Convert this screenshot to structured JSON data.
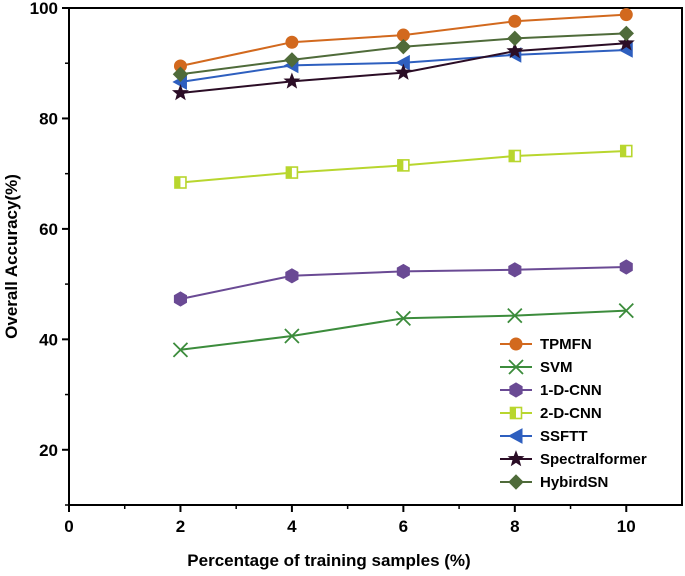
{
  "chart_data": {
    "type": "line",
    "title": "",
    "xlabel": "Percentage of training samples (%)",
    "ylabel": "Overall Accuracy(%)",
    "xlim": [
      0,
      11
    ],
    "ylim": [
      10,
      100
    ],
    "xticks": [
      0,
      2,
      4,
      6,
      8,
      10
    ],
    "yticks": [
      20,
      40,
      60,
      80,
      100
    ],
    "x": [
      2,
      4,
      6,
      8,
      10
    ],
    "legend_position": "bottom-right",
    "grid": false,
    "series": [
      {
        "name": "TPMFN",
        "color": "#d2691e",
        "marker": "circle",
        "values": [
          89.5,
          93.8,
          95.1,
          97.6,
          98.8
        ]
      },
      {
        "name": "SVM",
        "color": "#3c8c3c",
        "marker": "cross",
        "values": [
          38.1,
          40.6,
          43.8,
          44.3,
          45.2
        ]
      },
      {
        "name": "1-D-CNN",
        "color": "#6a4a94",
        "marker": "hexagon",
        "values": [
          47.3,
          51.5,
          52.3,
          52.6,
          53.1
        ]
      },
      {
        "name": "2-D-CNN",
        "color": "#b8d62e",
        "marker": "half-square",
        "values": [
          68.4,
          70.2,
          71.5,
          73.2,
          74.1
        ]
      },
      {
        "name": "SSFTT",
        "color": "#2e5fbf",
        "marker": "left-triangle",
        "values": [
          86.6,
          89.6,
          90.1,
          91.5,
          92.4
        ]
      },
      {
        "name": "Spectralformer",
        "color": "#2b0d26",
        "marker": "star",
        "values": [
          84.6,
          86.7,
          88.3,
          92.2,
          93.6
        ]
      },
      {
        "name": "HybirdSN",
        "color": "#4f6b3a",
        "marker": "diamond",
        "values": [
          88.0,
          90.6,
          93.0,
          94.5,
          95.4
        ]
      }
    ]
  }
}
